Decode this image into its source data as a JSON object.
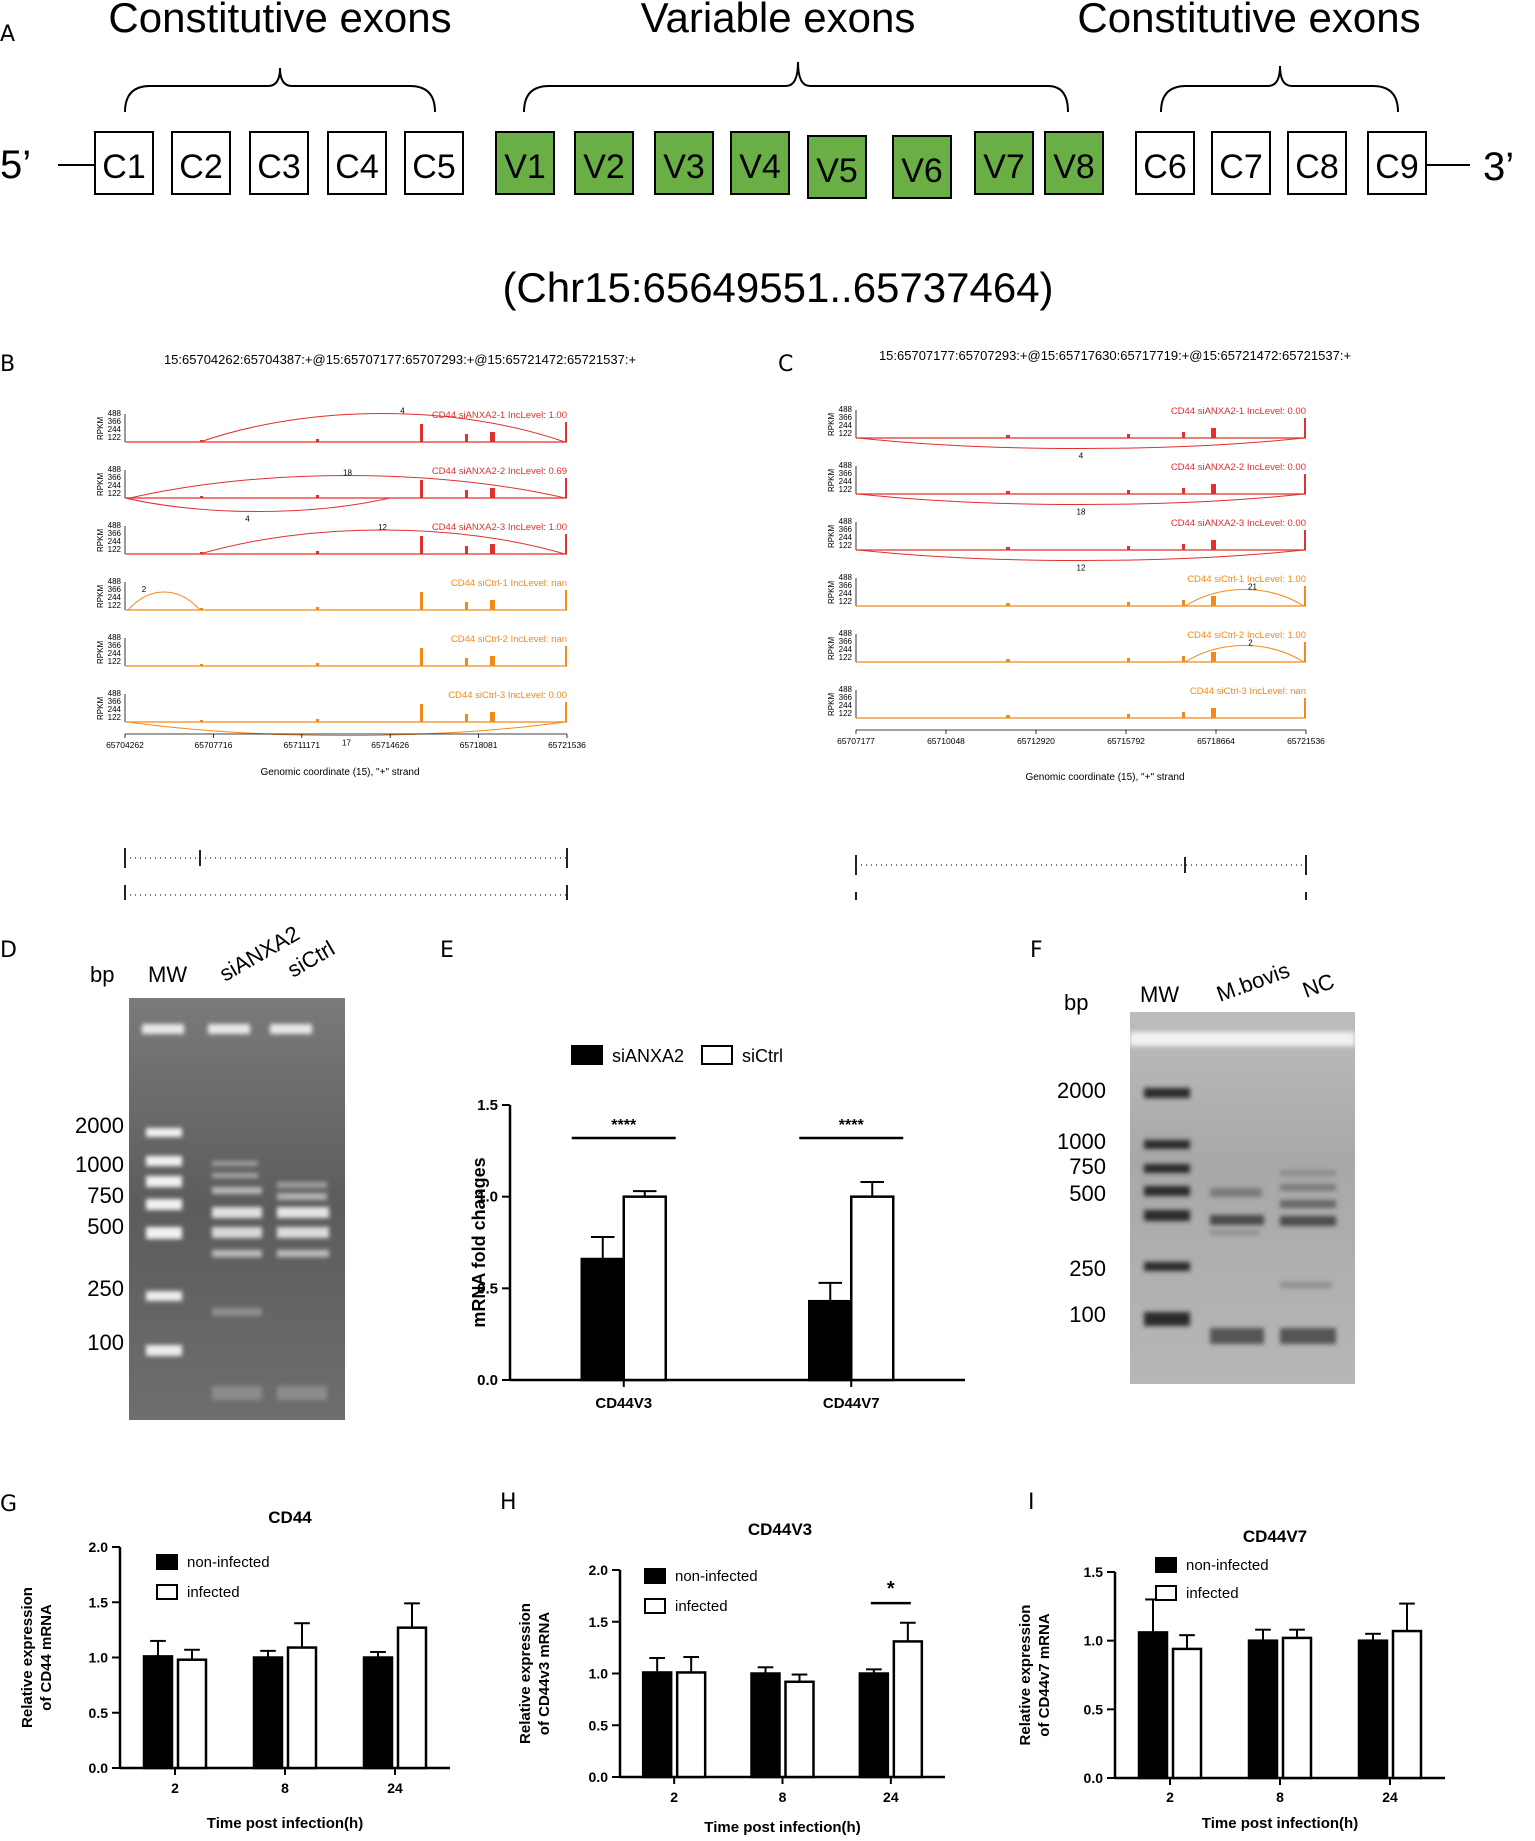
{
  "panels": {
    "A": "A",
    "B": "B",
    "C": "C",
    "D": "D",
    "E": "E",
    "F": "F",
    "G": "G",
    "H": "H",
    "I": "I"
  },
  "panel_a": {
    "left_group": "Constitutive exons",
    "middle_group": "Variable exons",
    "right_group": "Constitutive exons",
    "five_prime": "5’",
    "three_prime": "3’",
    "exons_left": [
      "C1",
      "C2",
      "C3",
      "C4",
      "C5"
    ],
    "exons_variable": [
      "V1",
      "V2",
      "V3",
      "V4",
      "V5",
      "V6",
      "V7",
      "V8"
    ],
    "exons_right": [
      "C6",
      "C7",
      "C8",
      "C9"
    ],
    "variable_color": "#6aaf45",
    "coordinates": "(Chr15:65649551..65737464)"
  },
  "panel_b": {
    "title": "15:65704262:65704387:+@15:65707177:65707293:+@15:65721472:65721537:+",
    "x_ticks": [
      "65704262",
      "65707716",
      "65711171",
      "65714626",
      "65718081",
      "65721536"
    ],
    "x_label": "Genomic coordinate (15), \"+\" strand",
    "y_label": "RPKM",
    "y_ticks": [
      "488",
      "366",
      "244",
      "122"
    ],
    "tracks": [
      {
        "label": "CD44 siANXA2-1 IncLevel: 1.00",
        "group": "siANXA2",
        "junction_counts": [
          "4"
        ]
      },
      {
        "label": "CD44 siANXA2-2 IncLevel: 0.69",
        "group": "siANXA2",
        "junction_counts": [
          "18",
          "4"
        ]
      },
      {
        "label": "CD44 siANXA2-3 IncLevel: 1.00",
        "group": "siANXA2",
        "junction_counts": [
          "12"
        ]
      },
      {
        "label": "CD44 siCtrl-1 IncLevel: nan",
        "group": "siCtrl",
        "junction_counts": [
          "2"
        ]
      },
      {
        "label": "CD44 siCtrl-2 IncLevel: nan",
        "group": "siCtrl",
        "junction_counts": []
      },
      {
        "label": "CD44 siCtrl-3 IncLevel: 0.00",
        "group": "siCtrl",
        "junction_counts": [
          "17"
        ]
      }
    ]
  },
  "panel_c": {
    "title": "15:65707177:65707293:+@15:65717630:65717719:+@15:65721472:65721537:+",
    "x_ticks": [
      "65707177",
      "65710048",
      "65712920",
      "65715792",
      "65718664",
      "65721536"
    ],
    "x_label": "Genomic coordinate (15), \"+\" strand",
    "y_label": "RPKM",
    "y_ticks": [
      "488",
      "366",
      "244",
      "122"
    ],
    "tracks": [
      {
        "label": "CD44 siANXA2-1 IncLevel: 0.00",
        "group": "siANXA2",
        "junction_counts": [
          "4"
        ]
      },
      {
        "label": "CD44 siANXA2-2 IncLevel: 0.00",
        "group": "siANXA2",
        "junction_counts": [
          "18"
        ]
      },
      {
        "label": "CD44 siANXA2-3 IncLevel: 0.00",
        "group": "siANXA2",
        "junction_counts": [
          "12"
        ]
      },
      {
        "label": "CD44 siCtrl-1 IncLevel: 1.00",
        "group": "siCtrl",
        "junction_counts": [
          "21"
        ]
      },
      {
        "label": "CD44 siCtrl-2 IncLevel: 1.00",
        "group": "siCtrl",
        "junction_counts": [
          "2"
        ]
      },
      {
        "label": "CD44 siCtrl-3 IncLevel: nan",
        "group": "siCtrl",
        "junction_counts": []
      }
    ]
  },
  "track_colors": {
    "siANXA2": "#e0302f",
    "siCtrl": "#f28a1a"
  },
  "panel_d": {
    "bp": "bp",
    "lanes": [
      "MW",
      "siANXA2",
      "siCtrl"
    ],
    "ladder": [
      "2000",
      "1000",
      "750",
      "500",
      "250",
      "100"
    ]
  },
  "panel_f": {
    "bp": "bp",
    "lanes": [
      "MW",
      "M.bovis",
      "NC"
    ],
    "ladder": [
      "2000",
      "1000",
      "750",
      "500",
      "250",
      "100"
    ]
  },
  "chart_data": [
    {
      "id": "E",
      "type": "bar",
      "title": "",
      "categories": [
        "CD44V3",
        "CD44V7"
      ],
      "series": [
        {
          "name": "siANXA2",
          "values": [
            0.66,
            0.43
          ],
          "errors": [
            0.12,
            0.1
          ],
          "fill": "#000000"
        },
        {
          "name": "siCtrl",
          "values": [
            1.0,
            1.0
          ],
          "errors": [
            0.03,
            0.08
          ],
          "fill": "#ffffff"
        }
      ],
      "ylabel": "mRNA fold changes",
      "xlabel": "",
      "ylim": [
        0,
        1.5
      ],
      "yticks": [
        "0.0",
        "0.5",
        "1.0",
        "1.5"
      ],
      "significance": [
        {
          "category": 0,
          "label": "****"
        },
        {
          "category": 1,
          "label": "****"
        }
      ],
      "legend": "top",
      "grid": false
    },
    {
      "id": "G",
      "type": "bar",
      "title": "CD44",
      "categories": [
        "2",
        "8",
        "24"
      ],
      "series": [
        {
          "name": "non-infected",
          "values": [
            1.01,
            1.0,
            1.0
          ],
          "errors": [
            0.14,
            0.06,
            0.05
          ],
          "fill": "#000000"
        },
        {
          "name": "infected",
          "values": [
            0.98,
            1.09,
            1.27
          ],
          "errors": [
            0.09,
            0.22,
            0.22
          ],
          "fill": "#ffffff"
        }
      ],
      "ylabel": "Relative expression of CD44 mRNA",
      "xlabel": "Time post infection(h)",
      "ylim": [
        0,
        2.0
      ],
      "yticks": [
        "0.0",
        "0.5",
        "1.0",
        "1.5",
        "2.0"
      ],
      "significance": [],
      "legend": "top-left",
      "grid": false
    },
    {
      "id": "H",
      "type": "bar",
      "title": "CD44V3",
      "categories": [
        "2",
        "8",
        "24"
      ],
      "series": [
        {
          "name": "non-infected",
          "values": [
            1.01,
            1.0,
            1.0
          ],
          "errors": [
            0.14,
            0.06,
            0.04
          ],
          "fill": "#000000"
        },
        {
          "name": "infected",
          "values": [
            1.01,
            0.92,
            1.31
          ],
          "errors": [
            0.15,
            0.07,
            0.18
          ],
          "fill": "#ffffff"
        }
      ],
      "ylabel": "Relative expression of CD44v3 mRNA",
      "xlabel": "Time post infection(h)",
      "ylim": [
        0,
        2.0
      ],
      "yticks": [
        "0.0",
        "0.5",
        "1.0",
        "1.5",
        "2.0"
      ],
      "significance": [
        {
          "category": 2,
          "label": "*"
        }
      ],
      "legend": "top-left",
      "grid": false
    },
    {
      "id": "I",
      "type": "bar",
      "title": "CD44V7",
      "categories": [
        "2",
        "8",
        "24"
      ],
      "series": [
        {
          "name": "non-infected",
          "values": [
            1.06,
            1.0,
            1.0
          ],
          "errors": [
            0.24,
            0.08,
            0.05
          ],
          "fill": "#000000"
        },
        {
          "name": "infected",
          "values": [
            0.94,
            1.02,
            1.07
          ],
          "errors": [
            0.1,
            0.06,
            0.2
          ],
          "fill": "#ffffff"
        }
      ],
      "ylabel": "Relative expression of CD44v7 mRNA",
      "xlabel": "Time post infection(h)",
      "ylim": [
        0,
        1.5
      ],
      "yticks": [
        "0.0",
        "0.5",
        "1.0",
        "1.5"
      ],
      "significance": [],
      "legend": "top-left",
      "grid": false
    }
  ]
}
